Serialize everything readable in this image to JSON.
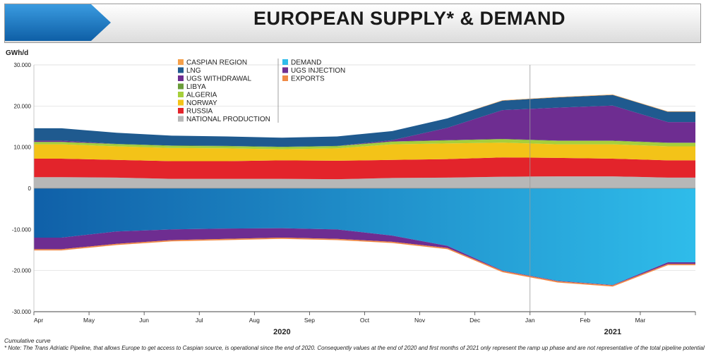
{
  "header": {
    "title": "EUROPEAN SUPPLY* & DEMAND"
  },
  "colors": {
    "caspian": "#f5a04a",
    "lng": "#1f5a8f",
    "ugs_withdrawal": "#6e2d91",
    "libya": "#6a9c3a",
    "algeria": "#a6cf3b",
    "norway": "#f3c318",
    "russia": "#e3242b",
    "national": "#b7b7b7",
    "demand_dark": "#1060a8",
    "demand_light": "#2fbcea",
    "ugs_injection": "#6e2d91",
    "exports": "#f08a46"
  },
  "chart_data": {
    "type": "area",
    "ylabel": "GWh/d",
    "ylim": [
      -30000,
      30000
    ],
    "y_ticks": [
      "30.000",
      "20.000",
      "10.000",
      "0",
      "-10.000",
      "-20.000",
      "-30.000"
    ],
    "x_ticks": [
      "Apr",
      "May",
      "Jun",
      "Jul",
      "Aug",
      "Sep",
      "Oct",
      "Nov",
      "Dec",
      "Jan",
      "Feb",
      "Mar"
    ],
    "year_labels": [
      "2020",
      "2021"
    ],
    "x": [
      "2020-04",
      "2020-05",
      "2020-06",
      "2020-07",
      "2020-08",
      "2020-09",
      "2020-10",
      "2020-11",
      "2020-12",
      "2021-01",
      "2021-02",
      "2021-03"
    ],
    "legend_supply": [
      "CASPIAN REGION",
      "LNG",
      "UGS WITHDRAWAL",
      "LIBYA",
      "ALGERIA",
      "NORWAY",
      "RUSSIA",
      "NATIONAL PRODUCTION"
    ],
    "legend_demand": [
      "DEMAND",
      "UGS INJECTION",
      "EXPORTS"
    ],
    "supply_series": [
      {
        "name": "NATIONAL PRODUCTION",
        "values": [
          2700,
          2600,
          2300,
          2300,
          2300,
          2200,
          2500,
          2600,
          2800,
          2900,
          2900,
          2600
        ]
      },
      {
        "name": "RUSSIA",
        "values": [
          4500,
          4300,
          4300,
          4300,
          4500,
          4500,
          4400,
          4500,
          4700,
          4500,
          4300,
          4200
        ]
      },
      {
        "name": "NORWAY",
        "values": [
          3500,
          3300,
          3200,
          3100,
          2700,
          3000,
          3800,
          3800,
          3600,
          3300,
          3500,
          3400
        ]
      },
      {
        "name": "ALGERIA",
        "values": [
          500,
          500,
          500,
          500,
          500,
          500,
          600,
          700,
          800,
          800,
          800,
          800
        ]
      },
      {
        "name": "LIBYA",
        "values": [
          100,
          100,
          100,
          100,
          100,
          100,
          100,
          100,
          100,
          100,
          100,
          100
        ]
      },
      {
        "name": "UGS WITHDRAWAL",
        "values": [
          300,
          0,
          0,
          0,
          0,
          0,
          300,
          3000,
          7000,
          8000,
          8500,
          5000
        ]
      },
      {
        "name": "LNG",
        "values": [
          3000,
          2700,
          2400,
          2300,
          2200,
          2300,
          2200,
          2300,
          2300,
          2500,
          2600,
          2500
        ]
      },
      {
        "name": "CASPIAN REGION",
        "values": [
          0,
          0,
          0,
          0,
          0,
          0,
          0,
          0,
          100,
          100,
          100,
          100
        ]
      }
    ],
    "demand_series": [
      {
        "name": "DEMAND",
        "values": [
          -12000,
          -10500,
          -10000,
          -9800,
          -9700,
          -10000,
          -11500,
          -14000,
          -20000,
          -22500,
          -23500,
          -18000
        ]
      },
      {
        "name": "UGS INJECTION",
        "values": [
          -2800,
          -3000,
          -2600,
          -2500,
          -2300,
          -2300,
          -1500,
          -500,
          -100,
          -100,
          -100,
          -400
        ]
      },
      {
        "name": "EXPORTS",
        "values": [
          -300,
          -300,
          -300,
          -300,
          -300,
          -300,
          -300,
          -300,
          -300,
          -300,
          -300,
          -300
        ]
      }
    ]
  },
  "footer": {
    "cumulative_note": "Cumulative curve",
    "note": "* Note: The Trans Adriatic Pipeline, that allows Europe to get access to Caspian source, is operational since the end of 2020. Consequently values at the end of 2020 and first months of 2021 only represent the ramp up phase and are not representative of the total pipeline potential"
  }
}
